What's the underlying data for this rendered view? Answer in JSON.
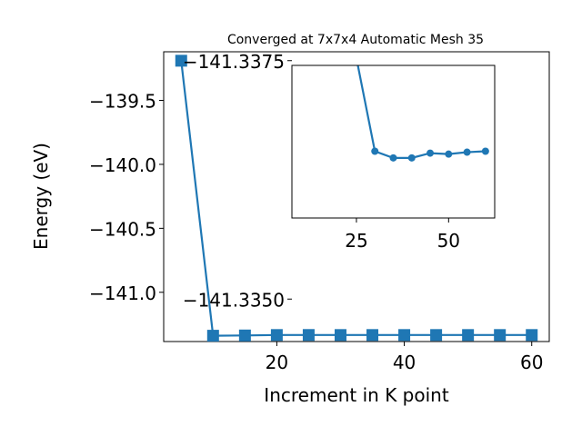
{
  "chart_data": [
    {
      "type": "line",
      "title": "Converged at 7x7x4 Automatic Mesh 35",
      "xlabel": "Increment in K point",
      "ylabel": "Energy (eV)",
      "xlim": [
        2.25,
        62.75
      ],
      "ylim": [
        -141.385,
        -139.12
      ],
      "x_ticks": [
        20,
        40,
        60
      ],
      "y_ticks": [
        -139.5,
        -140.0,
        -140.5,
        -141.0
      ],
      "y_tick_labels": [
        "−139.5",
        "−140.0",
        "−140.5",
        "−141.0"
      ],
      "x_tick_labels": [
        "20",
        "40",
        "60"
      ],
      "grid": false,
      "series": [
        {
          "marker": "square",
          "color": "#1f77b4",
          "x": [
            5,
            10,
            15,
            20,
            25,
            30,
            35,
            40,
            45,
            50,
            55,
            60
          ],
          "y": [
            -139.19,
            -141.3395,
            -141.3375,
            -141.334,
            -141.3338,
            -141.3341,
            -141.334,
            -141.334,
            -141.334,
            -141.334,
            -141.334,
            -141.334
          ]
        }
      ]
    },
    {
      "type": "line",
      "title": "",
      "xlabel": "",
      "ylabel": "",
      "xlim": [
        7.5,
        62.5
      ],
      "ylim": [
        -141.33585,
        -141.33745
      ],
      "x_ticks": [
        25,
        50
      ],
      "x_tick_labels": [
        "25",
        "50"
      ],
      "y_ticks": [
        -141.3375,
        -141.335
      ],
      "y_tick_labels": [
        "−141.3375",
        "−141.3350"
      ],
      "grid": false,
      "series": [
        {
          "marker": "circle",
          "color": "#1f77b4",
          "x": [
            20,
            30,
            35,
            40,
            45,
            50,
            55,
            60
          ],
          "y": [
            -141.3385,
            -141.33655,
            -141.33648,
            -141.33648,
            -141.33653,
            -141.33652,
            -141.33654,
            -141.33655
          ]
        }
      ]
    }
  ]
}
